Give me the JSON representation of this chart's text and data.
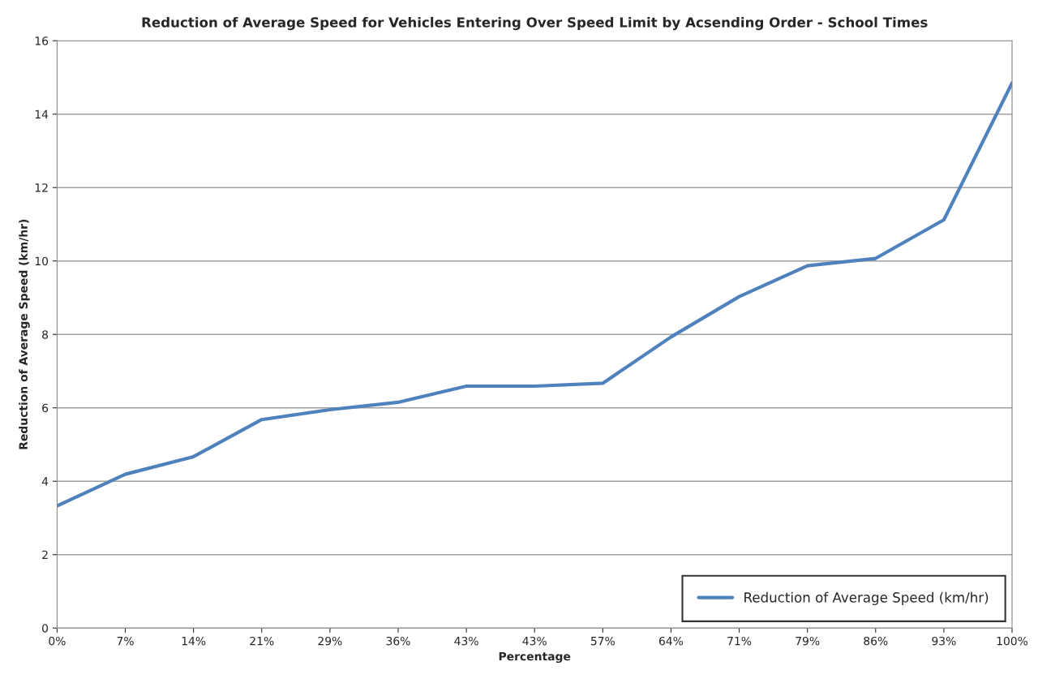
{
  "chart_data": {
    "type": "line",
    "title": "Reduction of Average Speed for Vehicles Entering Over Speed Limit by Acsending Order - School Times",
    "xlabel": "Percentage",
    "ylabel": "Reduction of Average Speed (km/hr)",
    "categories": [
      "0%",
      "7%",
      "14%",
      "21%",
      "29%",
      "36%",
      "43%",
      "43%",
      "57%",
      "64%",
      "71%",
      "79%",
      "86%",
      "93%",
      "100%"
    ],
    "series": [
      {
        "name": "Reduction of Average Speed (km/hr)",
        "color": "#4f81bd",
        "values": [
          3.33,
          4.19,
          4.67,
          5.68,
          5.95,
          6.15,
          6.59,
          6.59,
          6.67,
          7.93,
          9.03,
          9.87,
          10.07,
          11.12,
          14.85
        ]
      }
    ],
    "ylim": [
      0,
      16
    ],
    "yticks": [
      0,
      2,
      4,
      6,
      8,
      10,
      12,
      14,
      16
    ],
    "grid": "y",
    "legend": "bottom right",
    "marker": "none",
    "line_style": "solid"
  }
}
